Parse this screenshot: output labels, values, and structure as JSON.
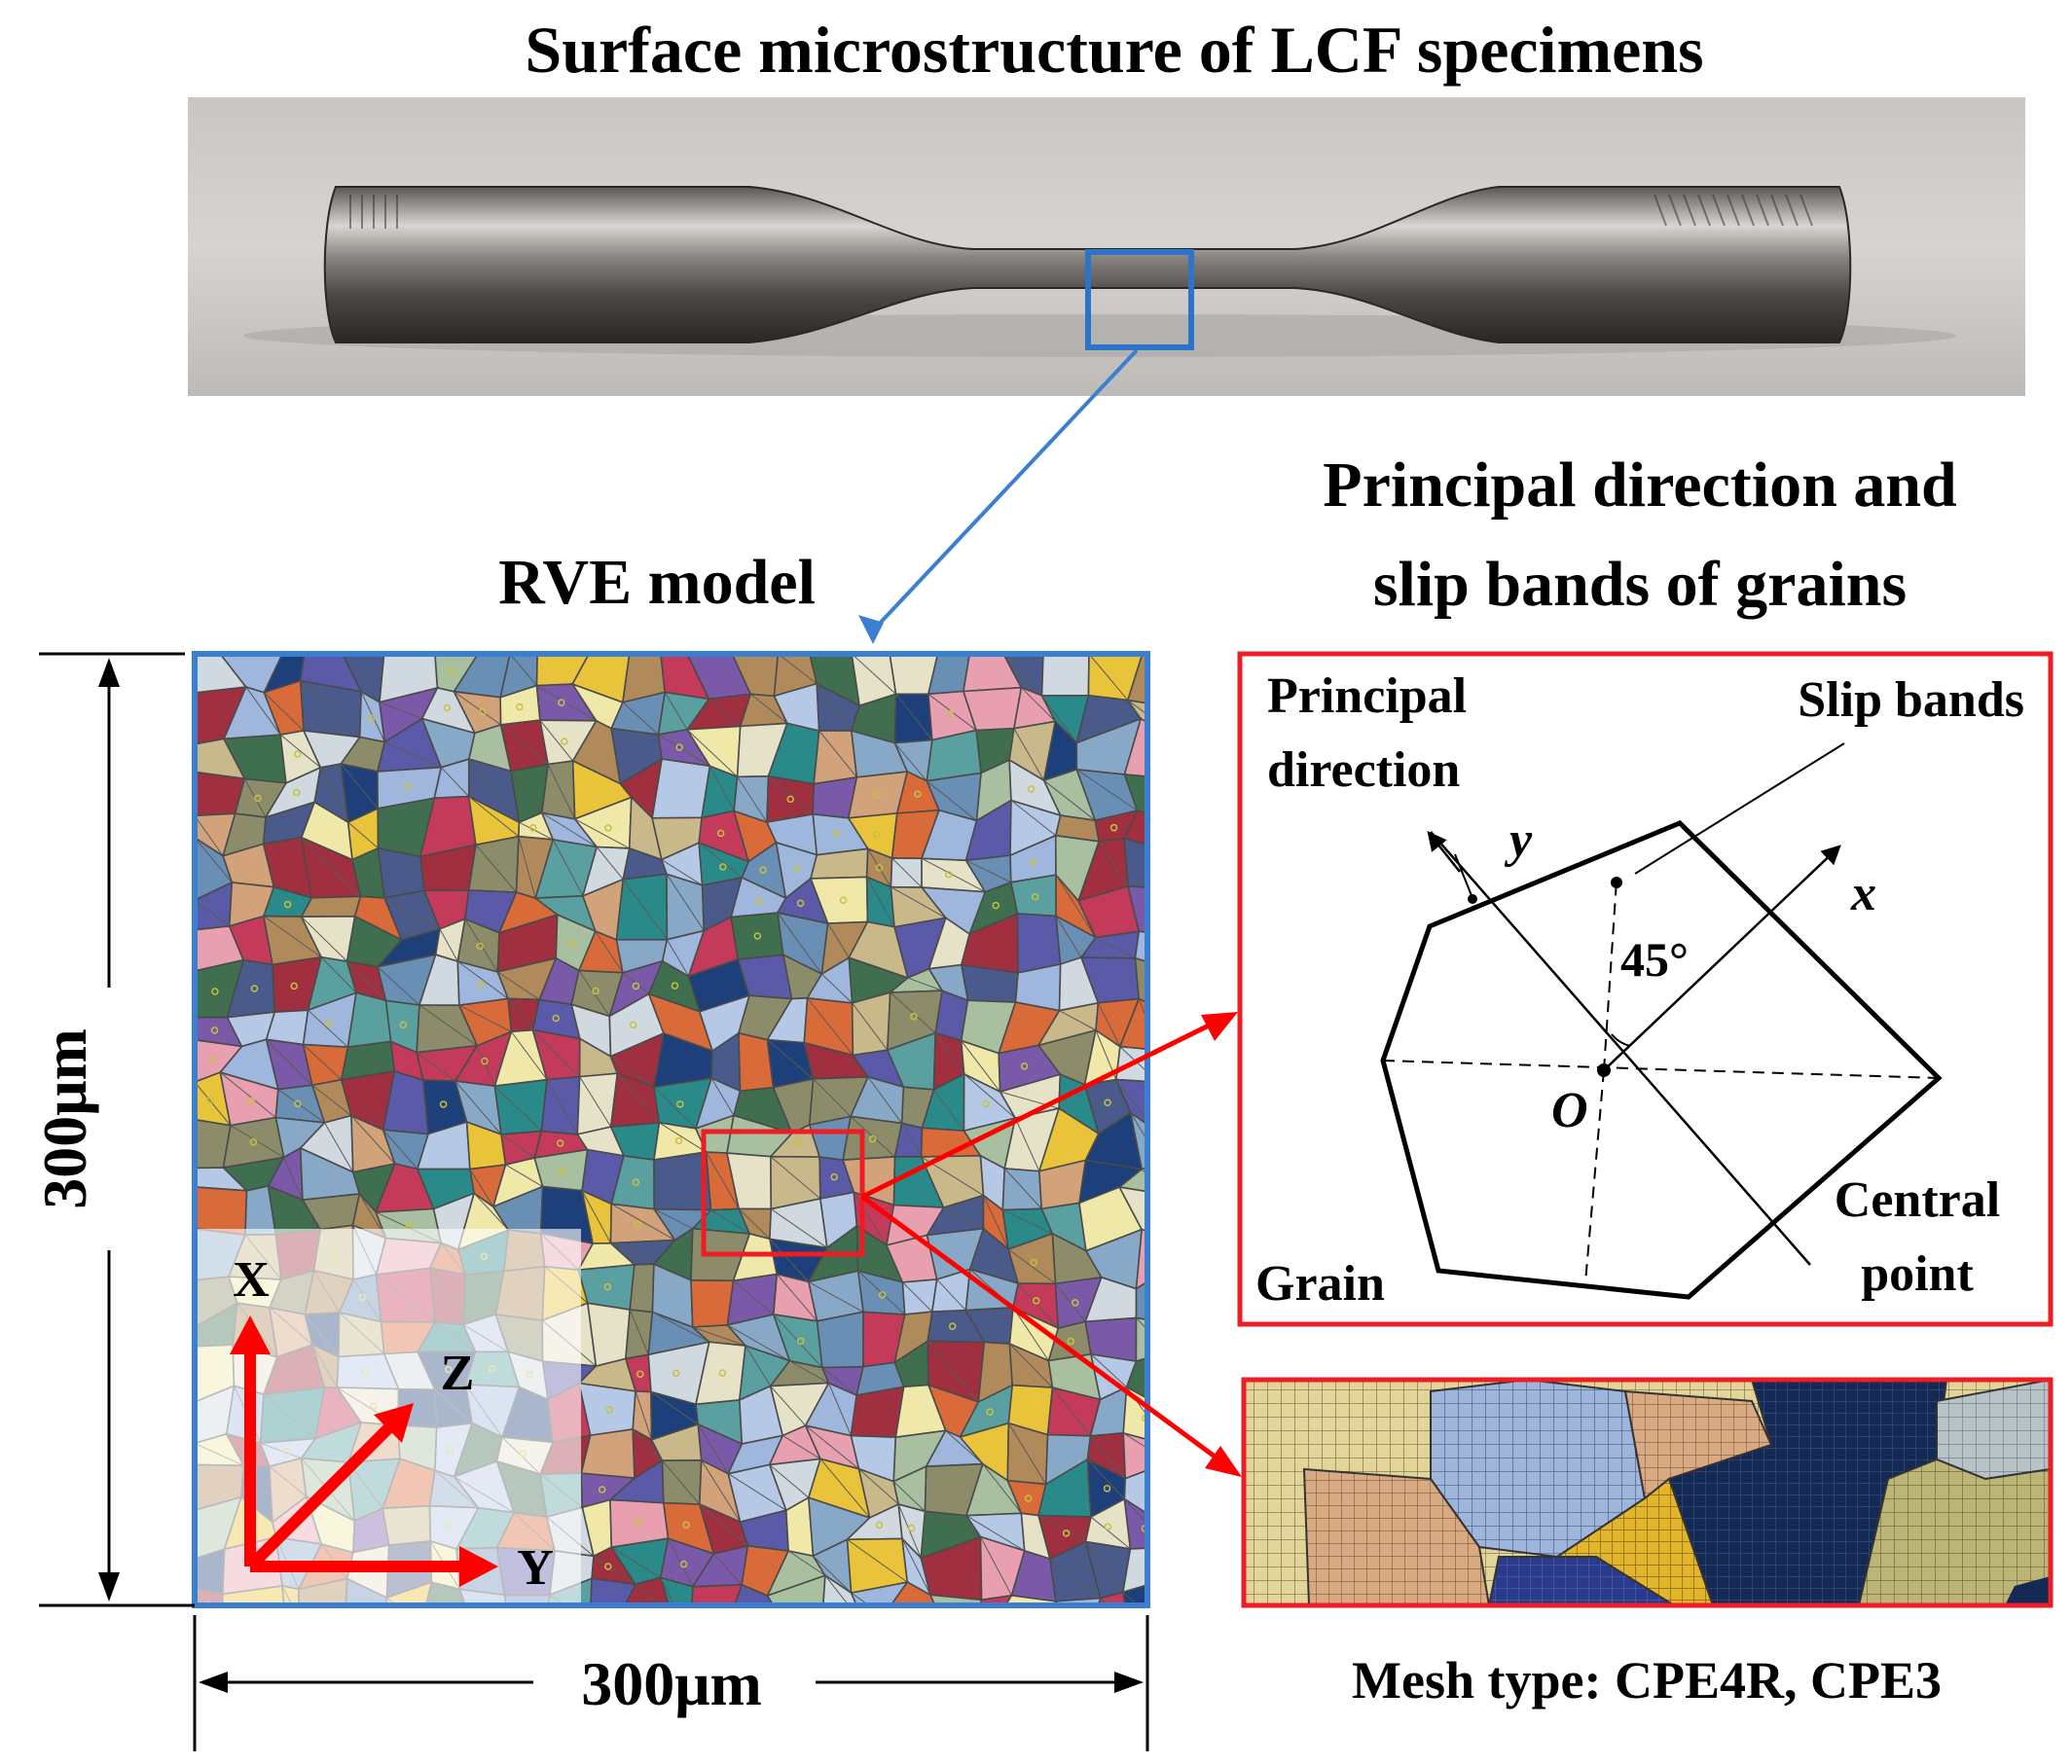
{
  "titles": {
    "specimen": "Surface microstructure of LCF specimens",
    "rve": "RVE model",
    "principal_line1": "Principal direction and",
    "principal_line2": "slip bands of grains"
  },
  "dimensions": {
    "width": "300μm",
    "height": "300μm"
  },
  "axes": {
    "x": "X",
    "y": "Y",
    "z": "Z"
  },
  "grain_diagram": {
    "principal_line1": "Principal",
    "principal_line2": "direction",
    "slip_bands": "Slip bands",
    "axis_y": "y",
    "axis_x": "x",
    "angle": "45°",
    "origin": "O",
    "central_line1": "Central",
    "central_line2": "point",
    "grain": "Grain"
  },
  "mesh": {
    "caption": "Mesh type: CPE4R, CPE3"
  },
  "colors": {
    "blue_frame": "#3b7fd0",
    "red_frame": "#ee1c25",
    "red_arrow": "#ff0000"
  }
}
